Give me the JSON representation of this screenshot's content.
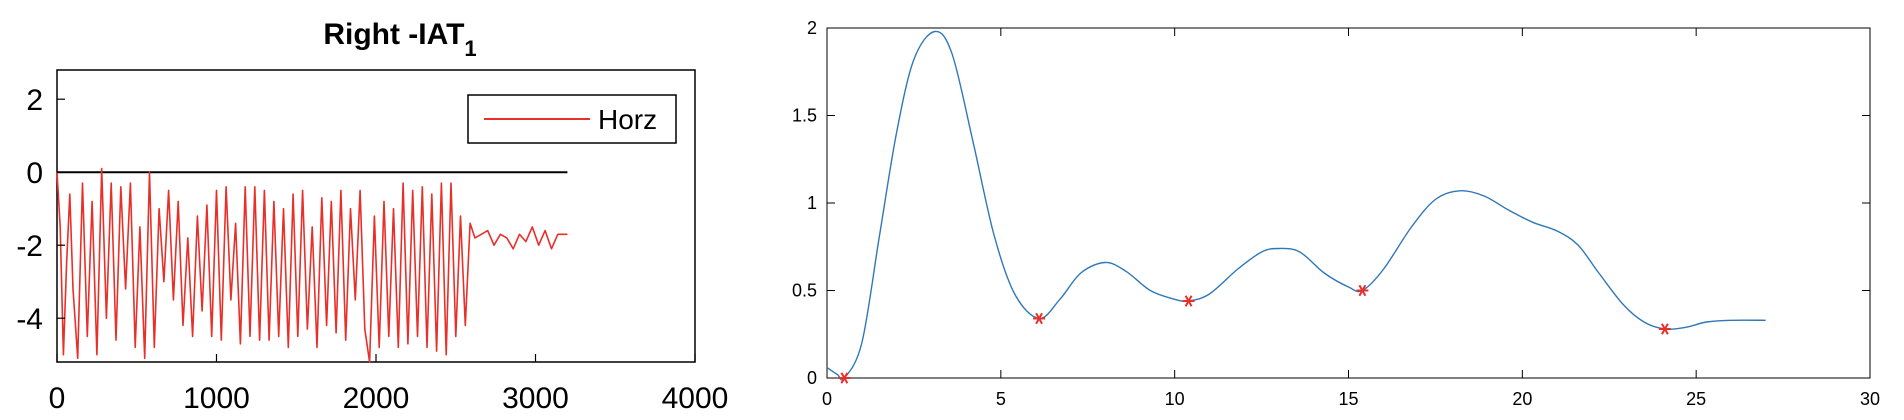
{
  "chart_data": [
    {
      "type": "line",
      "title": "Right -IAT",
      "title_subscript": "1",
      "xlim": [
        0,
        4000
      ],
      "ylim": [
        -5.2,
        2.8
      ],
      "xticks": [
        0,
        1000,
        2000,
        3000,
        4000
      ],
      "yticks": [
        2,
        0,
        -2,
        -4
      ],
      "xtick_labels": [
        "0",
        "1000",
        "2000",
        "3000",
        "4000"
      ],
      "ytick_labels": [
        "2",
        "0",
        "-2",
        "-4"
      ],
      "legend": {
        "position": "top-right"
      },
      "reference_line": {
        "y": 0,
        "x": [
          0,
          3200
        ],
        "color": "#000000"
      },
      "series": [
        {
          "name": "Horz",
          "color": "#e8302a",
          "x": [
            0,
            20,
            40,
            60,
            80,
            100,
            130,
            160,
            190,
            220,
            250,
            280,
            310,
            340,
            370,
            400,
            430,
            460,
            490,
            520,
            550,
            580,
            610,
            640,
            670,
            700,
            730,
            760,
            790,
            820,
            850,
            880,
            910,
            940,
            970,
            1000,
            1030,
            1060,
            1090,
            1120,
            1150,
            1180,
            1210,
            1240,
            1270,
            1300,
            1330,
            1360,
            1390,
            1420,
            1450,
            1480,
            1510,
            1540,
            1570,
            1600,
            1630,
            1660,
            1690,
            1720,
            1750,
            1780,
            1810,
            1840,
            1870,
            1900,
            1930,
            1960,
            1990,
            2020,
            2050,
            2080,
            2110,
            2140,
            2170,
            2200,
            2230,
            2260,
            2290,
            2320,
            2350,
            2380,
            2410,
            2440,
            2470,
            2500,
            2530,
            2560,
            2590,
            2620,
            2660,
            2700,
            2740,
            2780,
            2820,
            2860,
            2900,
            2940,
            2980,
            3020,
            3060,
            3100,
            3140,
            3180,
            3200
          ],
          "values": [
            0,
            -1.5,
            -5.0,
            -2.5,
            -0.6,
            -3.2,
            -5.1,
            -0.3,
            -4.5,
            -0.8,
            -5.0,
            0.1,
            -4.0,
            -0.3,
            -4.6,
            -0.4,
            -3.2,
            -0.3,
            -4.8,
            -1.5,
            -5.1,
            0.0,
            -4.8,
            -1.0,
            -3.0,
            -0.5,
            -3.5,
            -0.8,
            -4.2,
            -1.8,
            -4.5,
            -1.2,
            -3.8,
            -0.9,
            -4.5,
            -0.5,
            -4.6,
            -0.4,
            -3.5,
            -1.4,
            -4.7,
            -0.4,
            -4.5,
            -0.4,
            -4.6,
            -0.5,
            -4.6,
            -0.8,
            -4.5,
            -1.0,
            -4.8,
            -0.6,
            -4.5,
            -0.5,
            -4.3,
            -1.5,
            -4.8,
            -0.7,
            -4.2,
            -0.8,
            -4.4,
            -0.5,
            -4.6,
            -1.0,
            -3.5,
            -0.5,
            -4.3,
            -5.2,
            -1.2,
            -4.8,
            -0.8,
            -4.5,
            -1.0,
            -4.8,
            -0.3,
            -4.7,
            -0.5,
            -4.5,
            -0.4,
            -4.8,
            -0.6,
            -4.9,
            -0.3,
            -5.0,
            -0.3,
            -4.5,
            -1.2,
            -4.2,
            -1.4,
            -1.8,
            -1.7,
            -1.6,
            -2.0,
            -1.7,
            -1.8,
            -2.1,
            -1.7,
            -1.9,
            -1.5,
            -2.0,
            -1.6,
            -2.1,
            -1.7,
            -1.7,
            -1.7
          ]
        }
      ]
    },
    {
      "type": "line",
      "xlim": [
        0,
        30
      ],
      "ylim": [
        0,
        2
      ],
      "xticks": [
        0,
        5,
        10,
        15,
        20,
        25,
        30
      ],
      "yticks": [
        0,
        0.5,
        1,
        1.5,
        2
      ],
      "xtick_labels": [
        "0",
        "5",
        "10",
        "15",
        "20",
        "25",
        "30"
      ],
      "ytick_labels": [
        "0",
        "0.5",
        "1",
        "1.5",
        "2"
      ],
      "series": [
        {
          "color": "#2f78b8",
          "x": [
            0,
            0.3,
            0.5,
            1.0,
            1.5,
            2.0,
            2.5,
            3.1,
            3.6,
            4.2,
            4.8,
            5.4,
            6.1,
            6.7,
            7.3,
            8.0,
            8.6,
            9.3,
            10.0,
            10.4,
            11.0,
            11.8,
            12.5,
            13.0,
            13.6,
            14.3,
            15.0,
            15.4,
            16.0,
            16.8,
            17.5,
            18.2,
            18.9,
            19.6,
            20.3,
            21.0,
            21.6,
            22.2,
            22.9,
            23.5,
            24.1,
            24.7,
            25.3,
            26.0,
            27.0
          ],
          "values": [
            0.06,
            0.02,
            0.0,
            0.2,
            0.8,
            1.4,
            1.82,
            1.98,
            1.85,
            1.35,
            0.82,
            0.48,
            0.34,
            0.45,
            0.6,
            0.66,
            0.61,
            0.5,
            0.45,
            0.44,
            0.48,
            0.62,
            0.72,
            0.74,
            0.72,
            0.6,
            0.52,
            0.5,
            0.62,
            0.86,
            1.02,
            1.07,
            1.04,
            0.96,
            0.89,
            0.84,
            0.76,
            0.6,
            0.42,
            0.32,
            0.28,
            0.29,
            0.32,
            0.33,
            0.33
          ]
        }
      ],
      "markers": {
        "color": "#e8302a",
        "x": [
          0.5,
          6.1,
          10.4,
          15.4,
          24.1
        ],
        "y": [
          0.0,
          0.34,
          0.44,
          0.5,
          0.28
        ]
      }
    }
  ]
}
